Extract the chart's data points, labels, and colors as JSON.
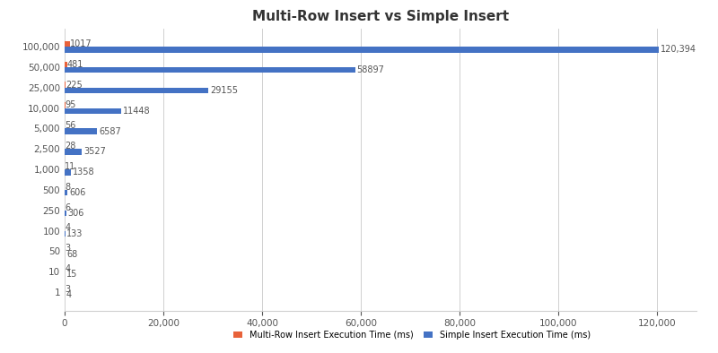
{
  "title": "Multi-Row Insert vs Simple Insert",
  "categories": [
    "100,000",
    "50,000",
    "25,000",
    "10,000",
    "5,000",
    "2,500",
    "1,000",
    "500",
    "250",
    "100",
    "50",
    "10",
    "1"
  ],
  "multi_row_values": [
    1017,
    481,
    225,
    95,
    56,
    28,
    11,
    8,
    6,
    4,
    3,
    4,
    3
  ],
  "simple_values": [
    120394,
    58897,
    29155,
    11448,
    6587,
    3527,
    1358,
    606,
    306,
    133,
    68,
    15,
    4
  ],
  "multi_row_labels": [
    "1017",
    "481",
    "225",
    "95",
    "56",
    "28",
    "11",
    "8",
    "6",
    "4",
    "3",
    "4",
    "3"
  ],
  "simple_labels": [
    "120,394",
    "58897",
    "29155",
    "11448",
    "6587",
    "3527",
    "1358",
    "606",
    "306",
    "133",
    "68",
    "15",
    "4"
  ],
  "color_multi": "#E8623A",
  "color_simple": "#4472C4",
  "legend_multi": "Multi-Row Insert Execution Time (ms)",
  "legend_simple": "Simple Insert Execution Time (ms)",
  "xlim": [
    0,
    128000
  ],
  "bar_height": 0.28,
  "background_color": "#ffffff",
  "grid_color": "#D0D0D0",
  "title_fontsize": 11,
  "tick_fontsize": 7.5,
  "label_fontsize": 7
}
